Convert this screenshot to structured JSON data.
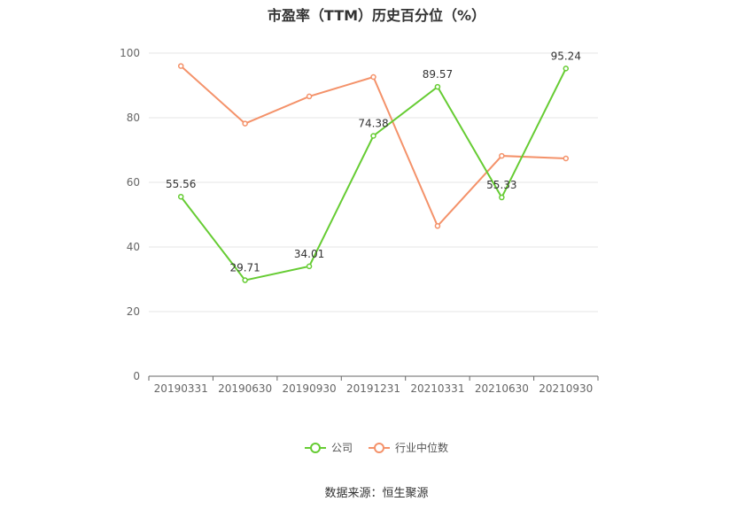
{
  "chart_data": {
    "type": "line",
    "title": "市盈率（TTM）历史百分位（%）",
    "categories": [
      "20190331",
      "20190630",
      "20190930",
      "20191231",
      "20210331",
      "20210630",
      "20210930"
    ],
    "ylim": [
      0,
      100
    ],
    "yticks": [
      0,
      20,
      40,
      60,
      80,
      100
    ],
    "grid": true,
    "legend_position": "bottom",
    "series": [
      {
        "name": "公司",
        "color": "#66cc33",
        "values": [
          55.56,
          29.71,
          34.01,
          74.38,
          89.57,
          55.33,
          95.24
        ],
        "labels": [
          "55.56",
          "29.71",
          "34.01",
          "74.38",
          "89.57",
          "55.33",
          "95.24"
        ]
      },
      {
        "name": "行业中位数",
        "color": "#f4926a",
        "values": [
          96.0,
          78.2,
          86.6,
          92.6,
          46.5,
          68.2,
          67.4
        ]
      }
    ]
  },
  "source": "数据来源：恒生聚源"
}
